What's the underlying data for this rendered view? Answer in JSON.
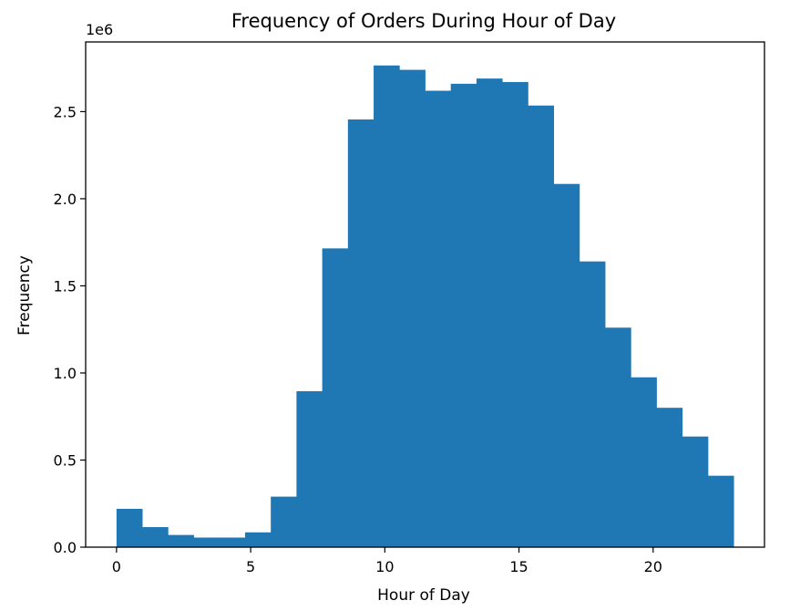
{
  "chart_data": {
    "type": "bar",
    "title": "Frequency of Orders During Hour of Day",
    "xlabel": "Hour of Day",
    "ylabel": "Frequency",
    "offset_text": "1e6",
    "xlim": [
      -1.15,
      24.15
    ],
    "ylim": [
      0,
      2.9
    ],
    "x_ticks": [
      0,
      5,
      10,
      15,
      20
    ],
    "x_tick_labels": [
      "0",
      "5",
      "10",
      "15",
      "20"
    ],
    "y_ticks": [
      0,
      0.5,
      1.0,
      1.5,
      2.0,
      2.5
    ],
    "y_tick_labels": [
      "0.0",
      "0.5",
      "1.0",
      "1.5",
      "2.0",
      "2.5"
    ],
    "bin_edges": [
      0,
      0.958,
      1.917,
      2.875,
      3.833,
      4.792,
      5.75,
      6.708,
      7.667,
      8.625,
      9.583,
      10.542,
      11.5,
      12.458,
      13.417,
      14.375,
      15.333,
      16.292,
      17.25,
      18.208,
      19.167,
      20.125,
      21.083,
      22.042,
      23
    ],
    "values": [
      0.22,
      0.115,
      0.07,
      0.055,
      0.055,
      0.085,
      0.29,
      0.895,
      1.715,
      2.455,
      2.765,
      2.74,
      2.62,
      2.66,
      2.69,
      2.67,
      2.535,
      2.085,
      1.64,
      1.26,
      0.975,
      0.8,
      0.635,
      0.41
    ],
    "value_unit": "1e6",
    "grid": false,
    "bar_color": "#1f77b4"
  }
}
